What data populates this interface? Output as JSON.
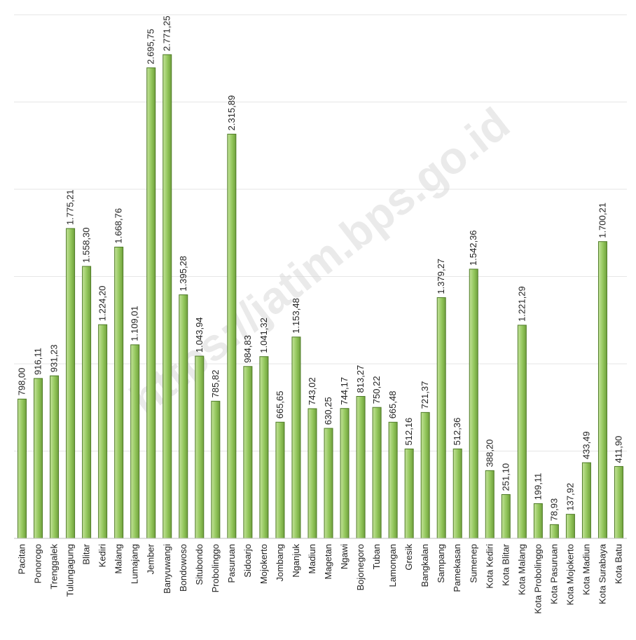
{
  "watermark": "https://jatim.bps.go.id",
  "chart_data": {
    "type": "bar",
    "title": "",
    "xlabel": "",
    "ylabel": "",
    "ylim": [
      0,
      3000
    ],
    "grid": true,
    "bar_color": "#92c65b",
    "bar_edge_color": "#4e7a26",
    "categories": [
      "Pacitan",
      "Ponorogo",
      "Trenggalek",
      "Tulungagung",
      "Blitar",
      "Kediri",
      "Malang",
      "Lumajang",
      "Jember",
      "Banyuwangi",
      "Bondowoso",
      "Situbondo",
      "Probolinggo",
      "Pasuruan",
      "Sidoarjo",
      "Mojokerto",
      "Jombang",
      "Nganjuk",
      "Madiun",
      "Magetan",
      "Ngawi",
      "Bojonegoro",
      "Tuban",
      "Lamongan",
      "Gresik",
      "Bangkalan",
      "Sampang",
      "Pamekasan",
      "Sumenep",
      "Kota Kediri",
      "Kota Blitar",
      "Kota Malang",
      "Kota Probolinggo",
      "Kota Pasuruan",
      "Kota Mojokerto",
      "Kota Madiun",
      "Kota Surabaya",
      "Kota Batu"
    ],
    "values": [
      798.0,
      916.11,
      931.23,
      1775.21,
      1558.3,
      1224.2,
      1668.76,
      1109.01,
      2695.75,
      2771.25,
      1395.28,
      1043.94,
      785.82,
      2315.89,
      984.83,
      1041.32,
      665.65,
      1153.48,
      743.02,
      630.25,
      744.17,
      813.27,
      750.22,
      665.48,
      512.16,
      721.37,
      1379.27,
      512.36,
      1542.36,
      388.2,
      251.1,
      1221.29,
      199.11,
      78.93,
      137.92,
      433.49,
      1700.21,
      411.9
    ],
    "value_labels": [
      "798,00",
      "916,11",
      "931,23",
      "1.775,21",
      "1.558,30",
      "1.224,20",
      "1.668,76",
      "1.109,01",
      "2.695,75",
      "2.771,25",
      "1.395,28",
      "1.043,94",
      "785,82",
      "2.315,89",
      "984,83",
      "1.041,32",
      "665,65",
      "1.153,48",
      "743,02",
      "630,25",
      "744,17",
      "813,27",
      "750,22",
      "665,48",
      "512,16",
      "721,37",
      "1.379,27",
      "512,36",
      "1.542,36",
      "388,20",
      "251,10",
      "1.221,29",
      "199,11",
      "78,93",
      "137,92",
      "433,49",
      "1.700,21",
      "411,90"
    ]
  }
}
